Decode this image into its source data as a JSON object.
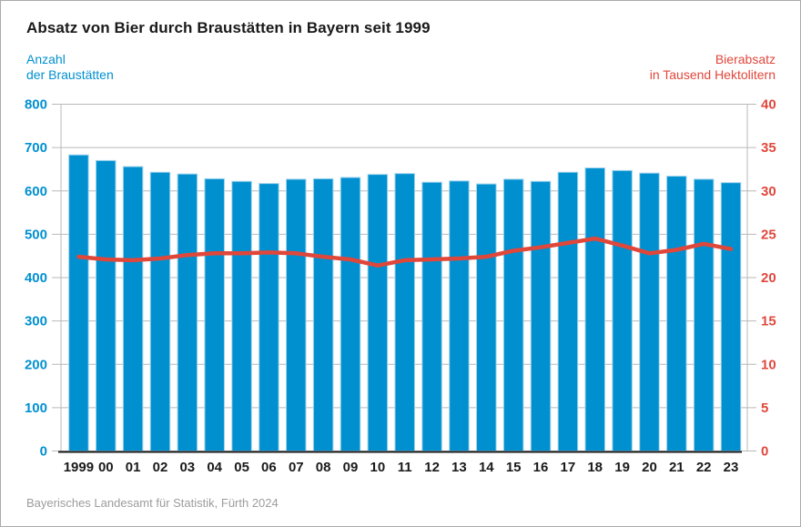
{
  "title": "Absatz von Bier durch Braustätten in Bayern seit 1999",
  "footer": "Bayerisches Landesamt für Statistik, Fürth 2024",
  "left_axis": {
    "label_line1": "Anzahl",
    "label_line2": "der Braustätten",
    "color": "#0090d0",
    "max": 800,
    "ticks": [
      800,
      700,
      600,
      500,
      400,
      300,
      200,
      100,
      0
    ]
  },
  "right_axis": {
    "label_line1": "Bierabsatz",
    "label_line2": "in Tausend Hektolitern",
    "color": "#e0473b",
    "max": 40,
    "ticks": [
      40,
      35,
      30,
      25,
      20,
      15,
      10,
      5,
      0
    ]
  },
  "chart_data": {
    "type": "bar",
    "title": "Absatz von Bier durch Braustätten in Bayern seit 1999",
    "categories": [
      "1999",
      "00",
      "01",
      "02",
      "03",
      "04",
      "05",
      "06",
      "07",
      "08",
      "09",
      "10",
      "11",
      "12",
      "13",
      "14",
      "15",
      "16",
      "17",
      "18",
      "19",
      "20",
      "21",
      "22",
      "23"
    ],
    "series": [
      {
        "name": "Anzahl der Braustätten",
        "type": "bar",
        "axis": "left",
        "color": "#0090d0",
        "edge_color": "#9ed2ec",
        "values": [
          683,
          670,
          656,
          643,
          639,
          628,
          622,
          617,
          627,
          628,
          631,
          638,
          640,
          620,
          623,
          616,
          627,
          622,
          643,
          653,
          647,
          641,
          634,
          627,
          619
        ]
      },
      {
        "name": "Bierabsatz in Tausend Hektolitern",
        "type": "line",
        "axis": "right",
        "color": "#e0473b",
        "values": [
          22.4,
          22.1,
          22.0,
          22.2,
          22.6,
          22.8,
          22.8,
          22.9,
          22.8,
          22.4,
          22.1,
          21.4,
          22.0,
          22.1,
          22.2,
          22.4,
          23.1,
          23.5,
          24.0,
          24.5,
          23.7,
          22.8,
          23.2,
          23.9,
          23.3
        ]
      }
    ],
    "left_ylim": [
      0,
      800
    ],
    "right_ylim": [
      0,
      40
    ],
    "grid": true,
    "gridline_color": "#b9b9b9",
    "x_label_color": "#1a1a1a",
    "axis_line_color": "#1a1a1a",
    "legend_position": "none"
  }
}
